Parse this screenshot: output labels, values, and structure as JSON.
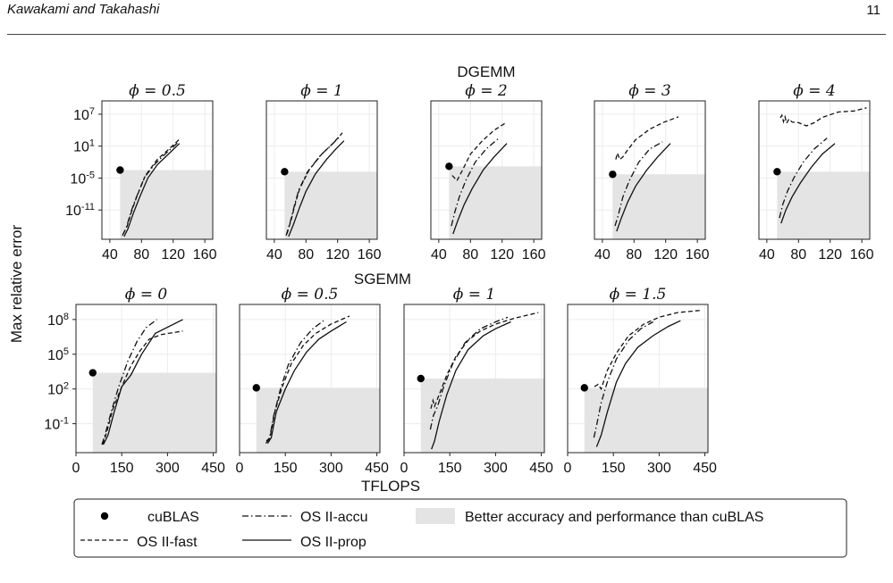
{
  "header": {
    "running_title": "Kawakami and Takahashi",
    "page_number": "11"
  },
  "figure": {
    "ylabel": "Max relative error",
    "xlabel": "TFLOPS",
    "legend": [
      {
        "key": "cublas",
        "label": "cuBLAS",
        "style": "dot"
      },
      {
        "key": "accu",
        "label": "OS II-accu",
        "style": "dashdot"
      },
      {
        "key": "region",
        "label": "Better accuracy and performance than cuBLAS",
        "style": "patch"
      },
      {
        "key": "fast",
        "label": "OS II-fast",
        "style": "dashed"
      },
      {
        "key": "prop",
        "label": "OS II-prop",
        "style": "solid"
      }
    ]
  },
  "footer": {
    "text": ""
  },
  "chart_data": [
    {
      "type": "line",
      "group_title": "DGEMM",
      "title": "ϕ = 0.5",
      "log_y": true,
      "xlim": [
        30,
        170
      ],
      "xticks": [
        40,
        80,
        120,
        160
      ],
      "ylim_log10": [
        -16.5,
        9.5
      ],
      "yticks_log10": [
        7,
        1,
        -5,
        -11
      ],
      "cublas": {
        "x": 53,
        "y_log10": -3.5
      },
      "series": [
        {
          "name": "OS II-fast",
          "x": [
            57,
            62,
            68,
            74,
            85,
            100,
            115,
            128
          ],
          "y_log10": [
            -15.5,
            -14,
            -11,
            -8.5,
            -4.5,
            -1.5,
            0.5,
            2.3
          ]
        },
        {
          "name": "OS II-accu",
          "x": [
            56,
            61,
            67,
            73,
            84,
            98,
            112,
            127
          ],
          "y_log10": [
            -15.8,
            -14.2,
            -11.2,
            -8.8,
            -4.8,
            -2.2,
            -0.2,
            1.8
          ]
        },
        {
          "name": "OS II-prop",
          "x": [
            58,
            63,
            70,
            78,
            88,
            100,
            114,
            128
          ],
          "y_log10": [
            -16,
            -14.5,
            -11.5,
            -8.5,
            -5,
            -2.5,
            -0.5,
            1.5
          ]
        }
      ]
    },
    {
      "type": "line",
      "title": "ϕ = 1",
      "log_y": true,
      "xlim": [
        30,
        170
      ],
      "xticks": [
        40,
        80,
        120,
        160
      ],
      "ylim_log10": [
        -16.5,
        9.5
      ],
      "yticks_log10": [
        7,
        1,
        -5,
        -11
      ],
      "cublas": {
        "x": 53,
        "y_log10": -3.8
      },
      "series": [
        {
          "name": "OS II-fast",
          "x": [
            56,
            61,
            67,
            72,
            84,
            100,
            114,
            126
          ],
          "y_log10": [
            -15.5,
            -13,
            -9.5,
            -7,
            -3.5,
            -0.5,
            1.5,
            3.5
          ]
        },
        {
          "name": "OS II-accu",
          "x": [
            55,
            60,
            66,
            71,
            82,
            98,
            112,
            124
          ],
          "y_log10": [
            -15.8,
            -13.3,
            -9.8,
            -7.2,
            -3.8,
            -0.8,
            1.2,
            3
          ]
        },
        {
          "name": "OS II-prop",
          "x": [
            58,
            64,
            72,
            80,
            92,
            106,
            118,
            128
          ],
          "y_log10": [
            -16,
            -13.8,
            -10.5,
            -7.5,
            -4.2,
            -1.5,
            0.5,
            2
          ]
        }
      ]
    },
    {
      "type": "line",
      "title": "ϕ = 2",
      "log_y": true,
      "xlim": [
        30,
        170
      ],
      "xticks": [
        40,
        80,
        120,
        160
      ],
      "ylim_log10": [
        -16.5,
        9.5
      ],
      "yticks_log10": [
        7,
        1,
        -5,
        -11
      ],
      "cublas": {
        "x": 53,
        "y_log10": -2.8
      },
      "series": [
        {
          "name": "OS II-fast",
          "x": [
            57,
            63,
            70,
            80,
            95,
            110,
            126
          ],
          "y_log10": [
            -4.5,
            -5.5,
            -3.5,
            -0.5,
            2,
            4,
            5.5
          ]
        },
        {
          "name": "OS II-accu",
          "x": [
            56,
            60,
            66,
            74,
            86,
            100,
            116
          ],
          "y_log10": [
            -14,
            -11.5,
            -8.5,
            -5.5,
            -2,
            0.5,
            2.5
          ]
        },
        {
          "name": "OS II-prop",
          "x": [
            58,
            64,
            72,
            82,
            96,
            110,
            126
          ],
          "y_log10": [
            -15.5,
            -13,
            -10,
            -7,
            -3.5,
            -1,
            1.5
          ]
        }
      ]
    },
    {
      "type": "line",
      "title": "ϕ = 3",
      "log_y": true,
      "xlim": [
        30,
        170
      ],
      "xticks": [
        40,
        80,
        120,
        160
      ],
      "ylim_log10": [
        -16.5,
        9.5
      ],
      "yticks_log10": [
        7,
        1,
        -5,
        -11
      ],
      "cublas": {
        "x": 53,
        "y_log10": -4.3
      },
      "series": [
        {
          "name": "OS II-fast",
          "x": [
            57,
            59,
            62,
            66,
            72,
            82,
            100,
            118,
            136
          ],
          "y_log10": [
            -1.5,
            -0.3,
            -1.5,
            -1,
            0.3,
            2.2,
            4.2,
            5.5,
            6.5
          ]
        },
        {
          "name": "OS II-accu",
          "x": [
            56,
            60,
            66,
            74,
            86,
            100,
            116
          ],
          "y_log10": [
            -14,
            -12,
            -8.5,
            -5.5,
            -2,
            0.5,
            1.8
          ]
        },
        {
          "name": "OS II-prop",
          "x": [
            58,
            64,
            72,
            82,
            96,
            110,
            126
          ],
          "y_log10": [
            -15,
            -12.5,
            -9.5,
            -6.5,
            -3.5,
            -1,
            1.5
          ]
        }
      ]
    },
    {
      "type": "line",
      "title": "ϕ = 4",
      "log_y": true,
      "xlim": [
        30,
        170
      ],
      "xticks": [
        40,
        80,
        120,
        160
      ],
      "ylim_log10": [
        -16.5,
        9.5
      ],
      "yticks_log10": [
        7,
        1,
        -5,
        -11
      ],
      "cublas": {
        "x": 53,
        "y_log10": -3.8
      },
      "series": [
        {
          "name": "OS II-fast",
          "x": [
            57,
            59,
            61,
            63,
            65,
            68,
            72,
            80,
            90,
            100,
            110,
            130,
            150,
            166
          ],
          "y_log10": [
            6.3,
            6.8,
            5.6,
            6.5,
            5.3,
            6.1,
            5.5,
            5.4,
            4.8,
            5.4,
            6.4,
            7.4,
            7.6,
            8.2
          ]
        },
        {
          "name": "OS II-accu",
          "x": [
            56,
            60,
            66,
            74,
            86,
            100,
            116
          ],
          "y_log10": [
            -12.5,
            -10,
            -7.5,
            -5,
            -2,
            0.5,
            2.5
          ]
        },
        {
          "name": "OS II-prop",
          "x": [
            58,
            64,
            72,
            82,
            96,
            110,
            126
          ],
          "y_log10": [
            -13.5,
            -11,
            -8.5,
            -6,
            -3,
            -0.5,
            1.5
          ]
        }
      ]
    },
    {
      "type": "line",
      "group_title": "SGEMM",
      "title": "ϕ = 0",
      "log_y": true,
      "xlim": [
        0,
        460
      ],
      "xticks": [
        0,
        150,
        300,
        450
      ],
      "ylim_log10": [
        -3.5,
        9.3
      ],
      "yticks_log10": [
        8,
        5,
        2,
        -1
      ],
      "cublas": {
        "x": 55,
        "y_log10": 3.4
      },
      "series": [
        {
          "name": "OS II-fast",
          "x": [
            88,
            100,
            120,
            150,
            180,
            210,
            240,
            280,
            350
          ],
          "y_log10": [
            -2.8,
            -1.8,
            0.2,
            2.2,
            4,
            5.3,
            6.3,
            6.7,
            7
          ]
        },
        {
          "name": "OS II-accu",
          "x": [
            85,
            95,
            115,
            140,
            170,
            200,
            230,
            265
          ],
          "y_log10": [
            -2.8,
            -2,
            0,
            2.2,
            4.4,
            6.1,
            7.3,
            8
          ]
        },
        {
          "name": "OS II-prop",
          "x": [
            90,
            105,
            125,
            150,
            180,
            215,
            260,
            350
          ],
          "y_log10": [
            -2.8,
            -2,
            0,
            2.2,
            3.2,
            5,
            6.8,
            8
          ]
        }
      ]
    },
    {
      "type": "line",
      "title": "ϕ = 0.5",
      "log_y": true,
      "xlim": [
        0,
        460
      ],
      "xticks": [
        0,
        150,
        300,
        450
      ],
      "ylim_log10": [
        -3.5,
        9.3
      ],
      "yticks_log10": [
        8,
        5,
        2,
        -1
      ],
      "cublas": {
        "x": 55,
        "y_log10": 2.1
      },
      "series": [
        {
          "name": "OS II-fast",
          "x": [
            88,
            100,
            115,
            140,
            170,
            210,
            250,
            300,
            360
          ],
          "y_log10": [
            -2.5,
            -2.2,
            0,
            2.2,
            4.2,
            5.8,
            6.8,
            7.6,
            8.3
          ]
        },
        {
          "name": "OS II-accu",
          "x": [
            86,
            98,
            112,
            135,
            160,
            200,
            240,
            275
          ],
          "y_log10": [
            -2.7,
            -2.3,
            -0.3,
            2.1,
            4.1,
            6,
            7.2,
            7.9
          ]
        },
        {
          "name": "OS II-prop",
          "x": [
            92,
            104,
            120,
            150,
            180,
            220,
            260,
            300,
            350
          ],
          "y_log10": [
            -2.7,
            -2.2,
            0,
            2,
            3.6,
            5.2,
            6.3,
            7,
            7.8
          ]
        }
      ]
    },
    {
      "type": "line",
      "title": "ϕ = 1",
      "log_y": true,
      "xlim": [
        0,
        460
      ],
      "xticks": [
        0,
        150,
        300,
        450
      ],
      "ylim_log10": [
        -3.5,
        9.3
      ],
      "yticks_log10": [
        8,
        5,
        2,
        -1
      ],
      "cublas": {
        "x": 55,
        "y_log10": 2.9
      },
      "series": [
        {
          "name": "OS II-fast",
          "x": [
            88,
            95,
            100,
            115,
            140,
            170,
            210,
            250,
            300,
            360,
            440
          ],
          "y_log10": [
            0.3,
            1,
            0.5,
            1.5,
            3.2,
            4.8,
            6.2,
            7,
            7.6,
            8.1,
            8.6
          ]
        },
        {
          "name": "OS II-accu",
          "x": [
            86,
            96,
            110,
            130,
            160,
            200,
            250,
            300,
            340
          ],
          "y_log10": [
            -1.5,
            -0.3,
            0.5,
            2.2,
            4.2,
            6,
            7.2,
            7.8,
            8.2
          ]
        },
        {
          "name": "OS II-prop",
          "x": [
            90,
            100,
            115,
            140,
            170,
            210,
            260,
            300,
            350
          ],
          "y_log10": [
            -3.2,
            -2.5,
            -0.8,
            1.5,
            3.6,
            5.4,
            6.6,
            7.2,
            7.8
          ]
        }
      ]
    },
    {
      "type": "line",
      "title": "ϕ = 1.5",
      "log_y": true,
      "xlim": [
        0,
        460
      ],
      "xticks": [
        0,
        150,
        300,
        450
      ],
      "ylim_log10": [
        -3.5,
        9.3
      ],
      "yticks_log10": [
        8,
        5,
        2,
        -1
      ],
      "cublas": {
        "x": 55,
        "y_log10": 2.1
      },
      "series": [
        {
          "name": "OS II-fast",
          "x": [
            88,
            100,
            110,
            130,
            160,
            200,
            250,
            300,
            360,
            440
          ],
          "y_log10": [
            2.2,
            2.4,
            2,
            3.6,
            5.1,
            6.6,
            7.6,
            8.2,
            8.6,
            8.8
          ]
        },
        {
          "name": "OS II-accu",
          "x": [
            86,
            96,
            110,
            130,
            160,
            200,
            240,
            280
          ],
          "y_log10": [
            -2.2,
            -1,
            0.8,
            2.6,
            4.6,
            6.2,
            7.2,
            7.8
          ]
        },
        {
          "name": "OS II-prop",
          "x": [
            95,
            110,
            130,
            160,
            190,
            230,
            280,
            330,
            370
          ],
          "y_log10": [
            -3,
            -2,
            0,
            2.6,
            4.2,
            5.6,
            6.6,
            7.4,
            7.9
          ]
        }
      ]
    }
  ]
}
